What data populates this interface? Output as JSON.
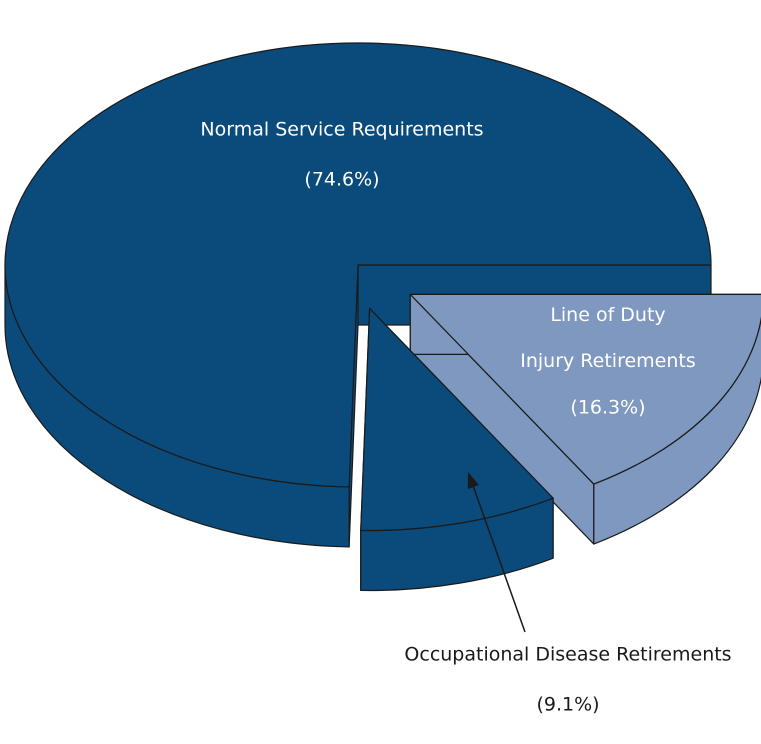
{
  "chart_data": {
    "type": "pie",
    "categories": [
      "Normal Service Requirements",
      "Occupational Disease Retirements",
      "Line of Duty Injury Retirements"
    ],
    "values": [
      74.6,
      9.1,
      16.3
    ],
    "value_labels": [
      "(74.6%)",
      "(9.1%)",
      "(16.3%)"
    ],
    "colors": [
      "#0b4b7c",
      "#0b4b7c",
      "#7f98bf"
    ]
  }
}
